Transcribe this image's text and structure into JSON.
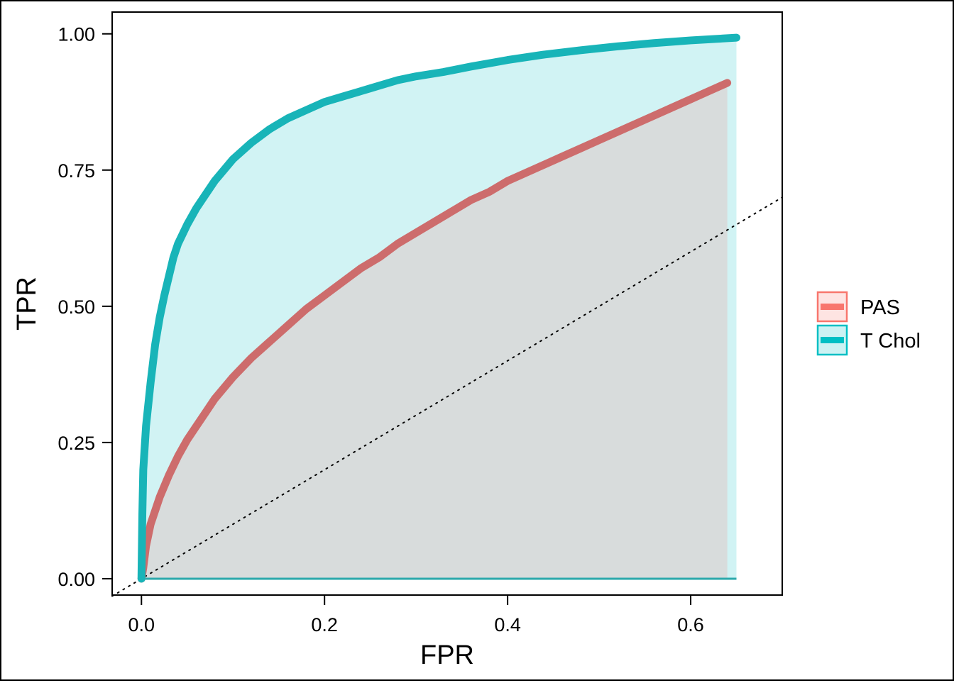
{
  "chart_data": {
    "type": "area",
    "title": "",
    "xlabel": "FPR",
    "ylabel": "TPR",
    "xlim": [
      -0.032,
      0.7
    ],
    "ylim": [
      -0.03,
      1.04
    ],
    "x_ticks": [
      0.0,
      0.2,
      0.4,
      0.6
    ],
    "x_tick_labels": [
      "0.0",
      "0.2",
      "0.4",
      "0.6"
    ],
    "y_ticks": [
      0.0,
      0.25,
      0.5,
      0.75,
      1.0
    ],
    "y_tick_labels": [
      "0.00",
      "0.25",
      "0.50",
      "0.75",
      "1.00"
    ],
    "grid": false,
    "legend_position": "right",
    "reference_line": {
      "x": [
        -0.032,
        0.7
      ],
      "y": [
        -0.032,
        0.7
      ],
      "style": "dotted"
    },
    "series": [
      {
        "name": "PAS",
        "line_color": "#cd6c6c",
        "legend_color": "#f8766d",
        "fill_color": "#f8766d",
        "x": [
          0,
          0.002,
          0.005,
          0.01,
          0.02,
          0.03,
          0.04,
          0.05,
          0.06,
          0.07,
          0.08,
          0.09,
          0.1,
          0.12,
          0.14,
          0.16,
          0.18,
          0.2,
          0.22,
          0.24,
          0.26,
          0.28,
          0.3,
          0.32,
          0.34,
          0.36,
          0.38,
          0.4,
          0.42,
          0.44,
          0.46,
          0.48,
          0.5,
          0.52,
          0.54,
          0.56,
          0.58,
          0.6,
          0.62,
          0.64
        ],
        "y": [
          0,
          0.02,
          0.06,
          0.1,
          0.15,
          0.19,
          0.225,
          0.255,
          0.28,
          0.305,
          0.33,
          0.35,
          0.37,
          0.405,
          0.435,
          0.465,
          0.495,
          0.52,
          0.545,
          0.57,
          0.59,
          0.615,
          0.635,
          0.655,
          0.675,
          0.695,
          0.71,
          0.73,
          0.745,
          0.76,
          0.775,
          0.79,
          0.805,
          0.82,
          0.835,
          0.85,
          0.865,
          0.88,
          0.895,
          0.91
        ]
      },
      {
        "name": "T Chol",
        "line_color": "#18b4b8",
        "legend_color": "#00bfc4",
        "fill_color": "#00bfc4",
        "x": [
          0,
          0.001,
          0.002,
          0.005,
          0.01,
          0.015,
          0.02,
          0.025,
          0.03,
          0.035,
          0.04,
          0.05,
          0.06,
          0.07,
          0.08,
          0.09,
          0.1,
          0.12,
          0.14,
          0.16,
          0.18,
          0.2,
          0.22,
          0.25,
          0.28,
          0.3,
          0.33,
          0.36,
          0.4,
          0.44,
          0.48,
          0.52,
          0.56,
          0.6,
          0.65
        ],
        "y": [
          0,
          0.12,
          0.2,
          0.28,
          0.36,
          0.43,
          0.48,
          0.52,
          0.555,
          0.59,
          0.615,
          0.65,
          0.68,
          0.705,
          0.73,
          0.75,
          0.77,
          0.8,
          0.825,
          0.845,
          0.86,
          0.875,
          0.885,
          0.9,
          0.915,
          0.922,
          0.93,
          0.94,
          0.952,
          0.962,
          0.97,
          0.977,
          0.983,
          0.988,
          0.993
        ]
      }
    ]
  }
}
